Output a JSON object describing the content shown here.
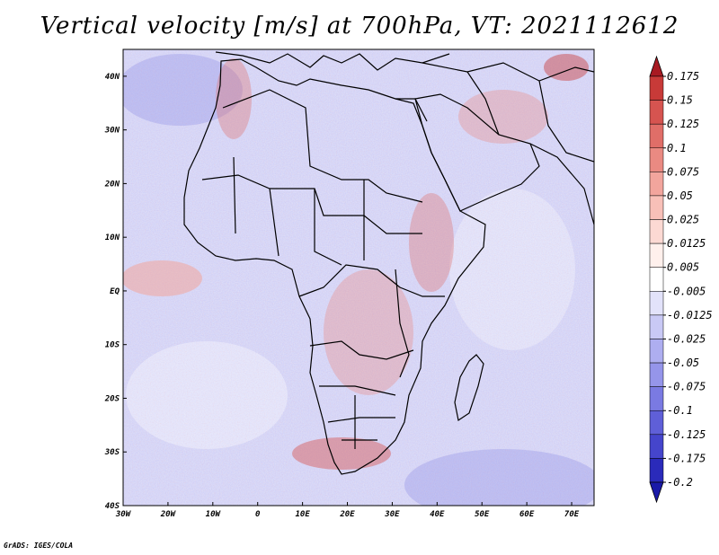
{
  "title": "Vertical velocity [m/s] at 700hPa, VT: 2021112612",
  "credit": "GrADS: IGES/COLA",
  "map": {
    "lon_range": [
      -30,
      75
    ],
    "lat_range": [
      -40,
      45
    ],
    "x_ticks": [
      {
        "value": -30,
        "label": "30W"
      },
      {
        "value": -20,
        "label": "20W"
      },
      {
        "value": -10,
        "label": "10W"
      },
      {
        "value": 0,
        "label": "0"
      },
      {
        "value": 10,
        "label": "10E"
      },
      {
        "value": 20,
        "label": "20E"
      },
      {
        "value": 30,
        "label": "30E"
      },
      {
        "value": 40,
        "label": "40E"
      },
      {
        "value": 50,
        "label": "50E"
      },
      {
        "value": 60,
        "label": "60E"
      },
      {
        "value": 70,
        "label": "70E"
      }
    ],
    "y_ticks": [
      {
        "value": 40,
        "label": "40N"
      },
      {
        "value": 30,
        "label": "30N"
      },
      {
        "value": 20,
        "label": "20N"
      },
      {
        "value": 10,
        "label": "10N"
      },
      {
        "value": 0,
        "label": "EQ"
      },
      {
        "value": -10,
        "label": "10S"
      },
      {
        "value": -20,
        "label": "20S"
      },
      {
        "value": -30,
        "label": "30S"
      },
      {
        "value": -40,
        "label": "40S"
      }
    ]
  },
  "colorbar": {
    "levels": [
      {
        "label": "0.175",
        "color": "#b8232a"
      },
      {
        "label": "0.15",
        "color": "#c83a38"
      },
      {
        "label": "0.125",
        "color": "#d65450"
      },
      {
        "label": "0.1",
        "color": "#e06e68"
      },
      {
        "label": "0.075",
        "color": "#ea8a82"
      },
      {
        "label": "0.05",
        "color": "#f2a59d"
      },
      {
        "label": "0.025",
        "color": "#f8c0b8"
      },
      {
        "label": "0.0125",
        "color": "#fcd9d3"
      },
      {
        "label": "0.005",
        "color": "#fff0ec"
      },
      {
        "label": "-0.005",
        "color": "#ffffff"
      },
      {
        "label": "-0.0125",
        "color": "#e2e2fa"
      },
      {
        "label": "-0.025",
        "color": "#c9c9f5"
      },
      {
        "label": "-0.05",
        "color": "#aeaef0"
      },
      {
        "label": "-0.075",
        "color": "#9595ea"
      },
      {
        "label": "-0.1",
        "color": "#7a7ae2"
      },
      {
        "label": "-0.125",
        "color": "#5f5fd8"
      },
      {
        "label": "-0.175",
        "color": "#4545cc"
      },
      {
        "label": "-0.2",
        "color": "#2a2aba"
      }
    ],
    "top_arrow_color": "#a81a22",
    "bottom_arrow_color": "#1a1aa8"
  }
}
